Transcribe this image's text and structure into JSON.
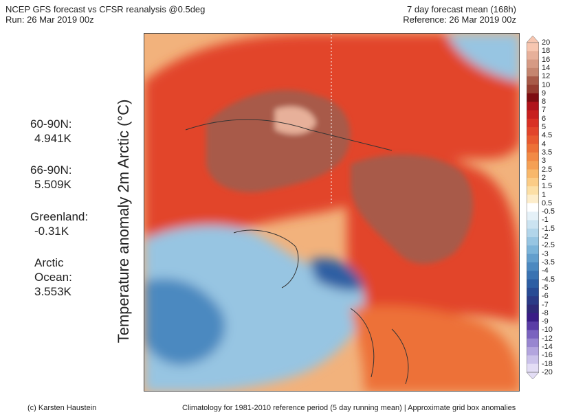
{
  "header": {
    "title_line1": "NCEP GFS forecast vs CFSR reanalysis @0.5deg",
    "title_line2": "Run: 26 Mar 2019 00z",
    "right_line1": "7 day forecast mean (168h)",
    "right_line2": "Reference: 26 Mar 2019 00z"
  },
  "y_axis_label": "Temperature anomaly 2m Arctic (°C)",
  "stats": [
    {
      "label": "60-90N:",
      "value": "4.941K"
    },
    {
      "label": "66-90N:",
      "value": "5.509K"
    },
    {
      "label": "Greenland:",
      "value": "-0.31K"
    },
    {
      "label": "Arctic Ocean:",
      "value": "3.553K"
    }
  ],
  "colorbar": {
    "ticks": [
      "20",
      "18",
      "16",
      "14",
      "12",
      "10",
      "9",
      "8",
      "7",
      "6",
      "5",
      "4.5",
      "4",
      "3.5",
      "3",
      "2.5",
      "2",
      "1.5",
      "1",
      "0.5",
      "-0.5",
      "-1",
      "-1.5",
      "-2",
      "-2.5",
      "-3",
      "-3.5",
      "-4",
      "-4.5",
      "-5",
      "-6",
      "-7",
      "-8",
      "-9",
      "-10",
      "-12",
      "-14",
      "-16",
      "-18",
      "-20"
    ],
    "colors": [
      "#f7c6b0",
      "#e7b09a",
      "#d69a84",
      "#c5856f",
      "#a85a48",
      "#963c30",
      "#7e0d12",
      "#b0141c",
      "#c8201f",
      "#d93125",
      "#e2452b",
      "#e85a30",
      "#ed7137",
      "#f28a45",
      "#f5a055",
      "#f8b86b",
      "#fbcc86",
      "#fcdfa6",
      "#fdedcb",
      "#ffffff",
      "#e5f1f8",
      "#cbe3f1",
      "#b2d5ea",
      "#97c5e2",
      "#7cb4d9",
      "#639fcd",
      "#4c89c0",
      "#3a73b2",
      "#2d5ea3",
      "#284b94",
      "#2b3a86",
      "#2f2a78",
      "#3a1d86",
      "#5a3ca6",
      "#7a63bf",
      "#9886d0",
      "#b3a5de",
      "#cbc2ea",
      "#e3ddf5"
    ],
    "values": [
      20,
      18,
      16,
      14,
      12,
      10,
      9,
      8,
      7,
      6,
      5,
      4.5,
      4,
      3.5,
      3,
      2.5,
      2,
      1.5,
      1,
      0.5,
      -0.5,
      -1,
      -1.5,
      -2,
      -2.5,
      -3,
      -3.5,
      -4,
      -4.5,
      -5,
      -6,
      -7,
      -8,
      -9,
      -10,
      -12,
      -14,
      -16,
      -18,
      -20
    ]
  },
  "footer": {
    "left": "(c) Karsten Haustein",
    "right": "Climatology for 1981-2010 reference period (5 day running mean) | Approximate grid box anomalies"
  }
}
